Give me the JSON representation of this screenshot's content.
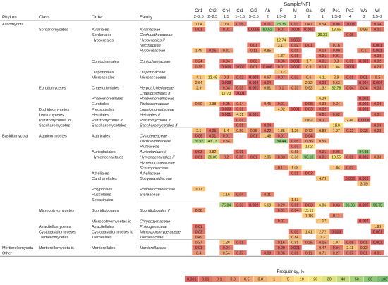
{
  "chart_data": {
    "type": "heatmap",
    "sample_title": "Sample/NFI",
    "headers": {
      "phylum": "Phylum",
      "class": "Class",
      "order": "Order",
      "family": "Family"
    },
    "columns": [
      {
        "name": "Cn1",
        "sub": "2–2.5"
      },
      {
        "name": "Cn2",
        "sub": "2–2.5"
      },
      {
        "name": "Cn4",
        "sub": "1.5"
      },
      {
        "name": "Cr1",
        "sub": "1–1.5"
      },
      {
        "name": "Cr2",
        "sub": "3–3.5"
      },
      {
        "name": "Ah",
        "sub": "2"
      },
      {
        "name": "F",
        "sub": "1.5–2"
      },
      {
        "name": "M",
        "sub": "1"
      },
      {
        "name": "Oa",
        "sub": "2"
      },
      {
        "name": "Ol",
        "sub": "1"
      },
      {
        "name": "Pe1",
        "sub": "1.5–2"
      },
      {
        "name": "Pe2",
        "sub": "4"
      },
      {
        "name": "Wa",
        "sub": "3"
      },
      {
        "name": "Wi",
        "sub": "1.5–2"
      }
    ],
    "rows": [
      {
        "phylum": "Ascomycota",
        "class": "",
        "order": "",
        "family": "",
        "total": false,
        "values": [
          1.04,
          null,
          0.9,
          0.05,
          null,
          0.01,
          73.35,
          0.03,
          0.47,
          0.54,
          0.08,
          0.003,
          null,
          0.04
        ]
      },
      {
        "phylum": "",
        "class": "Sordariomycetes",
        "order": "Xylariales",
        "family": "Xylariaceae",
        "total": false,
        "values": [
          0.01,
          null,
          0.01,
          null,
          0.0005,
          87.52,
          0.01,
          0.004,
          0.003,
          null,
          18.65,
          null,
          0.96,
          0.01
        ]
      },
      {
        "phylum": "",
        "class": "",
        "order": "Sordariales",
        "family": "Cephalothecaceae",
        "total": false,
        "values": [
          null,
          null,
          null,
          null,
          null,
          null,
          null,
          null,
          null,
          39.31,
          null,
          0.08,
          null,
          null
        ]
      },
      {
        "phylum": "",
        "class": "",
        "order": "Hypocreales",
        "family": "Hypocreales if",
        "total": false,
        "values": [
          null,
          null,
          null,
          null,
          null,
          null,
          12.74,
          0.003,
          null,
          null,
          null,
          null,
          null,
          null
        ]
      },
      {
        "phylum": "",
        "class": "",
        "order": "",
        "family": "Nectriaceae",
        "total": false,
        "values": [
          null,
          null,
          null,
          null,
          0.01,
          null,
          3.17,
          0.02,
          0.01,
          null,
          0.16,
          null,
          null,
          0.001
        ]
      },
      {
        "phylum": "",
        "class": "",
        "order": "",
        "family": "Hypocreaceae",
        "total": false,
        "values": [
          1.49,
          0.05,
          0.31,
          null,
          0.11,
          0.85,
          null,
          0.01,
          null,
          0.18,
          0.09,
          null,
          0.1,
          0.001
        ]
      },
      {
        "phylum": "",
        "class": "",
        "order": "",
        "family": "",
        "total": false,
        "values": [
          null,
          null,
          null,
          null,
          null,
          null,
          1.87,
          0.01,
          null,
          0.01,
          0.01,
          null,
          null,
          0.03
        ]
      },
      {
        "phylum": "",
        "class": "",
        "order": "Coniochaetales",
        "family": "Coniochaetaceae",
        "total": false,
        "values": [
          0.24,
          null,
          0.04,
          null,
          0.03,
          null,
          0.06,
          0.001,
          1.7,
          0.01,
          0.3,
          0.01,
          0.001,
          0.02
        ]
      },
      {
        "phylum": "",
        "class": "",
        "order": "",
        "family": "",
        "total": false,
        "values": [
          0.25,
          null,
          0.006,
          0.002,
          0.01,
          0.006,
          0.01,
          0.007,
          0.5,
          0.13,
          1.64,
          0.001,
          null,
          0.23
        ]
      },
      {
        "phylum": "",
        "class": "",
        "order": "Diaporthales",
        "family": "Diaporthaceae",
        "total": false,
        "values": [
          null,
          null,
          null,
          null,
          null,
          null,
          1.12,
          null,
          null,
          null,
          null,
          null,
          null,
          null
        ]
      },
      {
        "phylum": "",
        "class": "",
        "order": "Microascales",
        "family": "Microascaceae",
        "total": false,
        "values": [
          4.1,
          12.49,
          0.3,
          0.02,
          0.004,
          0.67,
          0.07,
          0.03,
          0.6,
          6.11,
          2.9,
          0.01,
          0.01,
          0.3
        ]
      },
      {
        "phylum": "",
        "class": "",
        "order": "",
        "family": "",
        "total": false,
        "values": [
          2.64,
          null,
          0.008,
          null,
          0.004,
          0.04,
          null,
          null,
          2.32,
          0.03,
          0.63,
          null,
          0.004,
          0.004
        ]
      },
      {
        "phylum": "",
        "class": "Eurotiomycetes",
        "order": "Chaetothyriales",
        "family": "Herpotrichiellaceae",
        "total": false,
        "values": [
          2.9,
          null,
          0.04,
          0.03,
          0.001,
          0.81,
          0.1,
          0.33,
          0.92,
          1.32,
          32.78,
          0.04,
          0.04,
          0.03
        ]
      },
      {
        "phylum": "",
        "class": "",
        "order": "",
        "family": "Chaetothyriales if",
        "total": false,
        "values": [
          null,
          null,
          17.73,
          0.001,
          null,
          null,
          null,
          null,
          null,
          null,
          null,
          null,
          null,
          null
        ]
      },
      {
        "phylum": "",
        "class": "",
        "order": "Phaeomoniellales",
        "family": "Phaeomoniellaceae",
        "total": false,
        "values": [
          null,
          null,
          null,
          null,
          null,
          null,
          null,
          null,
          null,
          6.29,
          null,
          null,
          0.001,
          null
        ]
      },
      {
        "phylum": "",
        "class": "",
        "order": "Eurotiales",
        "family": "Trichocomaceae",
        "total": false,
        "values": [
          0.69,
          3.38,
          0.05,
          0.14,
          null,
          0.45,
          0.01,
          null,
          0.08,
          0.33,
          0.34,
          null,
          0.001,
          0.04
        ]
      },
      {
        "phylum": "",
        "class": "Dothideomycetes",
        "order": "Pleosporales",
        "family": "Lophiostomataceae",
        "total": false,
        "values": [
          null,
          null,
          0.003,
          0.01,
          null,
          null,
          4.82,
          0.001,
          0.03,
          0.02,
          null,
          null,
          0.001,
          null
        ]
      },
      {
        "phylum": "",
        "class": "Leotiomycetes",
        "order": "Helotiales",
        "family": "Helotiales if",
        "total": false,
        "values": [
          null,
          null,
          0.001,
          4.31,
          0.001,
          null,
          null,
          null,
          null,
          0.01,
          0.02,
          null,
          null,
          0.01
        ]
      },
      {
        "phylum": "",
        "class": "Pezizomycotina io",
        "order": "Pezizomycotina io",
        "family": "Pezizomycotina if",
        "total": false,
        "values": [
          null,
          null,
          null,
          0.01,
          null,
          null,
          null,
          null,
          0.82,
          0.11,
          null,
          2.46,
          0.0003,
          null
        ]
      },
      {
        "phylum": "",
        "class": "Saccharomycetes",
        "order": "Saccharomycetales",
        "family": "Saccharomycetales if",
        "total": false,
        "values": [
          null,
          null,
          null,
          0.01,
          null,
          0.04,
          null,
          null,
          null,
          null,
          18.9,
          null,
          null,
          0.04
        ]
      },
      {
        "phylum": "",
        "class": "",
        "order": "",
        "family": "",
        "total": true,
        "values": [
          2.1,
          0.05,
          1.4,
          0.59,
          0.35,
          0.22,
          1.35,
          1.26,
          0.72,
          0.88,
          1.27,
          0.22,
          0.23,
          0.23
        ]
      },
      {
        "phylum": "Basidiomycota",
        "class": "Agaricomycetes",
        "order": "Agaricales",
        "family": "Cystotereaceae",
        "total": false,
        "values": [
          0.06,
          0.01,
          0.01,
          null,
          0.01,
          1.48,
          0.01,
          null,
          0.04,
          null,
          null,
          null,
          null,
          null
        ]
      },
      {
        "phylum": "",
        "class": "",
        "order": "",
        "family": "Tricholomataceae",
        "total": false,
        "values": [
          76.97,
          43.13,
          0.34,
          null,
          null,
          null,
          84.44,
          0.05,
          0.36,
          0.55,
          null,
          null,
          null,
          null
        ]
      },
      {
        "phylum": "",
        "class": "",
        "order": "",
        "family": "Pluteaceae",
        "total": false,
        "values": [
          null,
          null,
          null,
          null,
          null,
          null,
          null,
          0.03,
          12.2,
          null,
          null,
          null,
          null,
          null
        ]
      },
      {
        "phylum": "",
        "class": "",
        "order": "Auriculariales",
        "family": "Auriculariales if",
        "total": false,
        "values": [
          0.03,
          3.82,
          null,
          0.01,
          null,
          null,
          null,
          0.68,
          null,
          0.01,
          0.06,
          null,
          94.98,
          null
        ]
      },
      {
        "phylum": "",
        "class": "",
        "order": "Hymenochaetales",
        "family": "Hymenochaetales if",
        "total": false,
        "values": [
          0.01,
          36.86,
          0.2,
          0.05,
          0.01,
          2.06,
          0.03,
          3.36,
          90.16,
          0.01,
          13.55,
          0.01,
          0.002,
          0.33
        ]
      },
      {
        "phylum": "",
        "class": "",
        "order": "",
        "family": "Hymenochaetaceae",
        "total": false,
        "values": [
          null,
          null,
          null,
          null,
          null,
          null,
          null,
          null,
          null,
          null,
          null,
          null,
          null,
          null
        ]
      },
      {
        "phylum": "",
        "class": "",
        "order": "",
        "family": "Schizoporaceae",
        "total": false,
        "values": [
          null,
          null,
          null,
          null,
          null,
          null,
          0.17,
          1.08,
          null,
          null,
          1.04,
          0.02,
          null,
          null
        ]
      },
      {
        "phylum": "",
        "class": "",
        "order": "Atheliales",
        "family": "Atheliaceae",
        "total": false,
        "values": [
          null,
          null,
          null,
          null,
          null,
          null,
          null,
          0.01,
          0.03,
          null,
          null,
          null,
          null,
          null
        ]
      },
      {
        "phylum": "",
        "class": "",
        "order": "Cantharellales",
        "family": "Botryobasidiaceae",
        "total": false,
        "values": [
          null,
          null,
          null,
          null,
          null,
          null,
          null,
          null,
          null,
          4.79,
          null,
          0.003,
          0.001,
          null
        ]
      },
      {
        "phylum": "",
        "class": "",
        "order": "",
        "family": "",
        "total": false,
        "values": [
          null,
          null,
          null,
          null,
          null,
          null,
          null,
          null,
          null,
          null,
          null,
          null,
          3.79,
          null
        ]
      },
      {
        "phylum": "",
        "class": "",
        "order": "Polyporales",
        "family": "Phanerochaetaceae",
        "total": false,
        "values": [
          3.77,
          null,
          null,
          null,
          null,
          null,
          null,
          null,
          null,
          null,
          null,
          null,
          null,
          null
        ]
      },
      {
        "phylum": "",
        "class": "",
        "order": "Russulales",
        "family": "Stereaceae",
        "total": false,
        "values": [
          null,
          null,
          1.16,
          0.04,
          null,
          0.11,
          null,
          null,
          null,
          null,
          null,
          null,
          null,
          null
        ]
      },
      {
        "phylum": "",
        "class": "",
        "order": "Sebacinales",
        "family": "",
        "total": false,
        "values": [
          null,
          null,
          null,
          null,
          null,
          null,
          null,
          1.53,
          null,
          null,
          null,
          null,
          null,
          null
        ]
      },
      {
        "phylum": "",
        "class": "",
        "order": "",
        "family": "",
        "total": true,
        "values": [
          null,
          null,
          75.84,
          0.03,
          0.002,
          5.68,
          0.29,
          0.01,
          0.03,
          6.86,
          0.03,
          96.86,
          0.005,
          96.75
        ]
      },
      {
        "phylum": "",
        "class": "Microbotryomycetes",
        "order": "Sporidiobolales",
        "family": "Sporidiobolales if",
        "total": false,
        "values": [
          0.38,
          null,
          null,
          null,
          null,
          null,
          0.01,
          0.04,
          15.17,
          null,
          null,
          null,
          null,
          null
        ]
      },
      {
        "phylum": "",
        "class": "",
        "order": "",
        "family": "",
        "total": false,
        "values": [
          null,
          null,
          null,
          null,
          null,
          null,
          null,
          null,
          1.18,
          null,
          0.11,
          null,
          null,
          null
        ]
      },
      {
        "phylum": "",
        "class": "",
        "order": "Microbotryomycetes io",
        "family": "Chrysozymaceae",
        "total": false,
        "values": [
          null,
          null,
          null,
          null,
          null,
          null,
          0.01,
          null,
          null,
          1.17,
          null,
          null,
          0.001,
          null
        ]
      },
      {
        "phylum": "",
        "class": "Atractiellomycetes",
        "order": "Atractiellales",
        "family": "Phleogenaceae",
        "total": false,
        "values": [
          0.01,
          null,
          null,
          null,
          null,
          null,
          null,
          null,
          null,
          null,
          null,
          null,
          null,
          1.99
        ]
      },
      {
        "phylum": "",
        "class": "Cystobasidiomycetes",
        "order": "Cystobasidiomycetes io",
        "family": "Microsporomycetaceae",
        "total": false,
        "values": [
          0.03,
          null,
          null,
          null,
          null,
          null,
          null,
          0.03,
          1.41,
          2.72,
          0.003,
          null,
          null,
          0.001
        ]
      },
      {
        "phylum": "",
        "class": "Tremellomycetes",
        "order": "Tremellales",
        "family": "Tremellaceae",
        "total": false,
        "values": [
          0.49,
          null,
          null,
          null,
          null,
          null,
          null,
          0.84,
          null,
          1.2,
          null,
          null,
          null,
          null
        ]
      },
      {
        "phylum": "",
        "class": "",
        "order": "",
        "family": "",
        "total": true,
        "values": [
          0.37,
          null,
          1.26,
          0.01,
          null,
          null,
          0.16,
          0.91,
          0.25,
          0.15,
          1.07,
          0.08,
          0.01,
          0.003
        ]
      },
      {
        "phylum": "Mortierellomycota",
        "class": "Mortierellomycota is",
        "order": "Mortierellales",
        "family": "Mortierellaceae",
        "total": false,
        "values": [
          0.01,
          null,
          0.04,
          null,
          null,
          null,
          0.09,
          0.001,
          null,
          0.47,
          0.04,
          2.11,
          0.32,
          null
        ]
      },
      {
        "phylum": "Other",
        "class": "",
        "order": "",
        "family": "",
        "total": false,
        "values": [
          0.4,
          null,
          0.54,
          0.07,
          null,
          0.08,
          0.06,
          0.01,
          0.11,
          0.71,
          0.27,
          0.07,
          0.01,
          0.01
        ]
      }
    ],
    "legend": {
      "title": "Frequency, %",
      "ticks": [
        "0.001",
        "0.01",
        "0.1",
        "0.3",
        "0.5",
        "0.8",
        "1",
        "5",
        "10",
        "20",
        "30",
        "40",
        "50",
        "80",
        "100"
      ],
      "colors": [
        "#e06666",
        "#e57569",
        "#ea856d",
        "#ee9471",
        "#f2a474",
        "#f5b377",
        "#f9c37b",
        "#fbd27d",
        "#fde07f",
        "#f2e67f",
        "#dde27d",
        "#c4da7b",
        "#a9d178",
        "#8fc876",
        "#78bf72"
      ]
    }
  }
}
